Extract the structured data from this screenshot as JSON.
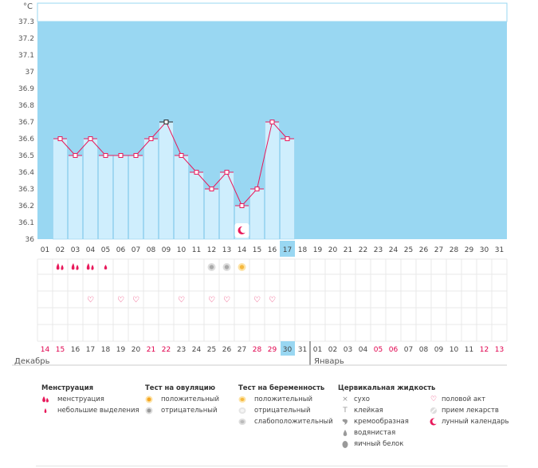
{
  "chart_data": {
    "type": "line",
    "unit_label": "°C",
    "y_ticks": [
      "37.3",
      "37.2",
      "37.1",
      "37",
      "36.9",
      "36.8",
      "36.7",
      "36.6",
      "36.5",
      "36.4",
      "36.3",
      "36.2",
      "36.1",
      "36"
    ],
    "ylim": [
      36.0,
      37.3
    ],
    "days_top": [
      "01",
      "02",
      "03",
      "04",
      "05",
      "06",
      "07",
      "08",
      "09",
      "10",
      "11",
      "12",
      "13",
      "14",
      "15",
      "16",
      "17",
      "18",
      "19",
      "20",
      "21",
      "22",
      "23",
      "24",
      "25",
      "26",
      "27",
      "28",
      "29",
      "30",
      "31"
    ],
    "current_day_index": 16,
    "temperatures": [
      null,
      36.6,
      36.5,
      36.6,
      36.5,
      36.5,
      36.5,
      36.6,
      36.7,
      36.5,
      36.4,
      36.3,
      36.4,
      36.2,
      36.3,
      36.7,
      36.6
    ],
    "highlight_point_index": 8,
    "dates_bottom": [
      "14",
      "15",
      "16",
      "17",
      "18",
      "19",
      "20",
      "21",
      "22",
      "23",
      "24",
      "25",
      "26",
      "27",
      "28",
      "29",
      "30",
      "31",
      "01",
      "02",
      "03",
      "04",
      "05",
      "06",
      "07",
      "08",
      "09",
      "10",
      "11",
      "12",
      "13"
    ],
    "dates_bottom_red": [
      0,
      1,
      7,
      8,
      14,
      15,
      22,
      23,
      29,
      30
    ],
    "dates_bottom_today_index": 16,
    "month_left": "Декабрь",
    "month_right": "Январь",
    "month_split_index": 18,
    "moon_day_index": 13,
    "menstruation_days": [
      {
        "index": 1,
        "kind": "menstruation"
      },
      {
        "index": 2,
        "kind": "menstruation"
      },
      {
        "index": 3,
        "kind": "menstruation"
      },
      {
        "index": 4,
        "kind": "spotting"
      }
    ],
    "ovulation_days": [
      {
        "index": 11,
        "kind": "negative"
      },
      {
        "index": 12,
        "kind": "negative"
      },
      {
        "index": 13,
        "kind": "positive"
      }
    ],
    "intercourse_days": [
      3,
      5,
      6,
      9,
      11,
      12,
      14,
      15
    ],
    "colors": {
      "band": "#99d7f2",
      "bar_fill": "#cfeefd",
      "bar_edge": "#93d0ee",
      "line": "#e8195b",
      "red_text": "#e0004d",
      "today_bg": "#99d7f2",
      "grid": "#e9e9e9",
      "ovul_positive": "#f5b83d",
      "ovul_negative": "#aaaaaa"
    }
  },
  "legend": {
    "menstruation": {
      "title": "Менструация",
      "items": [
        "менструация",
        "небольшие выделения"
      ]
    },
    "ovulation": {
      "title": "Тест на овуляцию",
      "items": [
        "положительный",
        "отрицательный"
      ]
    },
    "pregnancy": {
      "title": "Тест на беременность",
      "items": [
        "положительный",
        "отрицательный",
        "слабоположительный"
      ]
    },
    "cervical": {
      "title": "Цервикальная жидкость",
      "items": [
        "сухо",
        "клейкая",
        "кремообразная",
        "водянистая",
        "яичный белок"
      ]
    },
    "other": {
      "items": [
        "половой акт",
        "прием лекарств",
        "лунный календарь"
      ]
    }
  }
}
